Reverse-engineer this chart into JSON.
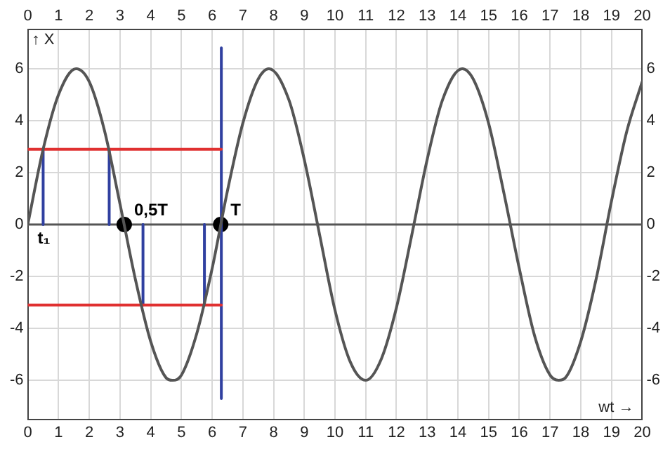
{
  "chart_data": {
    "type": "line",
    "xlabel": "wt →",
    "ylabel": "↑ X",
    "xlim": [
      0,
      20
    ],
    "xticks": [
      0,
      1,
      2,
      3,
      4,
      5,
      6,
      7,
      8,
      9,
      10,
      11,
      12,
      13,
      14,
      15,
      16,
      17,
      18,
      19,
      20
    ],
    "x2lim": [
      0,
      20
    ],
    "x2ticks": [
      0,
      1,
      2,
      3,
      4,
      5,
      6,
      7,
      8,
      9,
      10,
      11,
      12,
      13,
      14,
      15,
      16,
      17,
      18,
      19,
      20
    ],
    "ylim": [
      -7.5,
      7.5
    ],
    "yticks": [
      -6,
      -4,
      -2,
      0,
      2,
      4,
      6
    ],
    "y2lim": [
      -7.5,
      7.5
    ],
    "y2ticks": [
      -6,
      -4,
      -2,
      0,
      2,
      4,
      6
    ],
    "grid": true,
    "legend": false,
    "marker": "none",
    "line_style": "solid",
    "ref_lines": [
      {
        "axis": "y",
        "value": 0,
        "color": "#555555"
      }
    ],
    "series": [
      {
        "color": "#555555",
        "x": [
          0,
          0.5,
          1,
          1.57,
          2,
          2.5,
          3,
          3.5,
          4,
          4.5,
          4.71,
          5,
          5.5,
          6,
          6.5,
          7,
          7.5,
          7.85,
          8.5,
          9,
          9.5,
          10,
          10.5,
          11,
          11.5,
          12,
          12.5,
          13,
          13.5,
          14.14,
          14.5,
          15,
          15.5,
          16,
          16.5,
          17,
          17.28,
          17.5,
          18,
          18.5,
          19,
          19.5,
          20
        ],
        "values": [
          0,
          2.9,
          5.0,
          6,
          5.5,
          3.6,
          0.8,
          -2.1,
          -4.5,
          -5.9,
          -6,
          -5.8,
          -4.2,
          -1.7,
          1.3,
          3.9,
          5.6,
          6,
          4.8,
          2.5,
          -0.4,
          -3.3,
          -5.3,
          -6,
          -5.2,
          -3.2,
          -0.4,
          2.5,
          4.8,
          6,
          5.6,
          3.9,
          1.2,
          -1.7,
          -4.3,
          -5.8,
          -6,
          -5.9,
          -4.5,
          -2.1,
          0.9,
          3.6,
          5.5
        ]
      },
      {
        "type": "line",
        "color": "#e03030",
        "x": [
          0,
          6.3
        ],
        "values": [
          2.9,
          2.9
        ]
      },
      {
        "type": "line",
        "color": "#e03030",
        "x": [
          0,
          6.3
        ],
        "values": [
          -3.1,
          -3.1
        ]
      },
      {
        "type": "line",
        "color": "#3040a0",
        "x": [
          0.5,
          0.5
        ],
        "values": [
          0,
          2.9
        ]
      },
      {
        "type": "line",
        "color": "#3040a0",
        "x": [
          2.65,
          2.65
        ],
        "values": [
          0,
          2.9
        ]
      },
      {
        "type": "line",
        "color": "#3040a0",
        "x": [
          3.75,
          3.75
        ],
        "values": [
          0,
          -3.1
        ]
      },
      {
        "type": "line",
        "color": "#3040a0",
        "x": [
          5.75,
          5.75
        ],
        "values": [
          0,
          -3.1
        ]
      },
      {
        "type": "line",
        "color": "#3040a0",
        "x": [
          6.3,
          6.3
        ],
        "values": [
          6.8,
          -6.7
        ]
      },
      {
        "type": "scatter",
        "color": "#000000",
        "marker": "circle",
        "x": [
          3.14,
          6.28
        ],
        "values": [
          0,
          0
        ]
      }
    ],
    "annotations": [
      {
        "text": "0,5T",
        "x": 3.14,
        "y": 0
      },
      {
        "text": "T",
        "x": 6.28,
        "y": 0
      },
      {
        "text": "t₁",
        "x": 0.5,
        "y": 0
      }
    ]
  }
}
